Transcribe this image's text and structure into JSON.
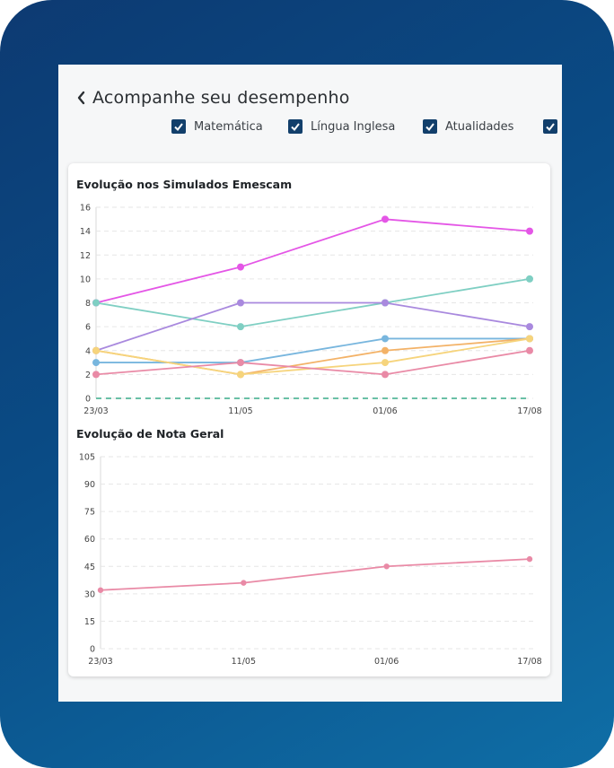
{
  "header": {
    "title": "Acompanhe seu desempenho",
    "back_icon": "chevron-left-icon"
  },
  "filters": [
    {
      "label": "Matemática",
      "checked": true
    },
    {
      "label": "Língua Inglesa",
      "checked": true
    },
    {
      "label": "Atualidades",
      "checked": true
    },
    {
      "label": "",
      "checked": true
    }
  ],
  "colors": {
    "frame_start": "#0d3a72",
    "frame_end": "#0f6ea6",
    "checkbox": "#123f6b"
  },
  "chart_data": [
    {
      "type": "line",
      "title": "Evolução nos Simulados Emescam",
      "categories": [
        "23/03",
        "11/05",
        "01/06",
        "17/08"
      ],
      "ylim": [
        0,
        16
      ],
      "yticks": [
        0,
        2,
        4,
        6,
        8,
        10,
        12,
        14,
        16
      ],
      "grid": true,
      "series": [
        {
          "color": "#e456e6",
          "values": [
            8,
            11,
            15,
            14
          ],
          "dashed": false
        },
        {
          "color": "#7fcfc3",
          "values": [
            8,
            6,
            8,
            10
          ],
          "dashed": false
        },
        {
          "color": "#a989de",
          "values": [
            4,
            8,
            8,
            6
          ],
          "dashed": false
        },
        {
          "color": "#78b6de",
          "values": [
            3,
            3,
            5,
            5
          ],
          "dashed": false
        },
        {
          "color": "#f3b267",
          "values": [
            4,
            2,
            4,
            5
          ],
          "dashed": false
        },
        {
          "color": "#f6d47c",
          "values": [
            4,
            2,
            3,
            5
          ],
          "dashed": false
        },
        {
          "color": "#e98aa6",
          "values": [
            2,
            3,
            2,
            4
          ],
          "dashed": false
        },
        {
          "color": "#55b89a",
          "values": [
            0,
            0,
            0,
            0
          ],
          "dashed": true
        }
      ]
    },
    {
      "type": "line",
      "title": "Evolução de Nota Geral",
      "categories": [
        "23/03",
        "11/05",
        "01/06",
        "17/08"
      ],
      "ylim": [
        0,
        105
      ],
      "yticks": [
        0,
        15,
        30,
        45,
        60,
        75,
        90,
        105
      ],
      "grid": true,
      "series": [
        {
          "color": "#e98aa6",
          "values": [
            32,
            36,
            45,
            49
          ],
          "dashed": false
        }
      ]
    }
  ]
}
